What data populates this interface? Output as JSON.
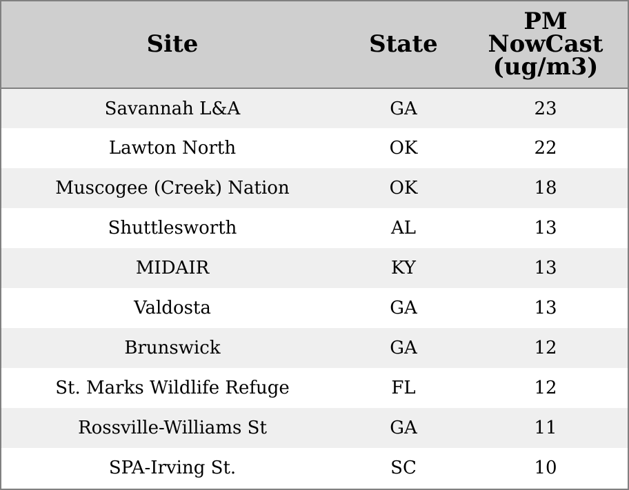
{
  "chart_data": {
    "type": "table",
    "columns": [
      "Site",
      "State",
      "PM NowCast (ug/m3)"
    ],
    "rows": [
      {
        "site": "Savannah L&A",
        "state": "GA",
        "pm": "23"
      },
      {
        "site": "Lawton North",
        "state": "OK",
        "pm": "22"
      },
      {
        "site": "Muscogee (Creek) Nation",
        "state": "OK",
        "pm": "18"
      },
      {
        "site": "Shuttlesworth",
        "state": "AL",
        "pm": "13"
      },
      {
        "site": "MIDAIR",
        "state": "KY",
        "pm": "13"
      },
      {
        "site": "Valdosta",
        "state": "GA",
        "pm": "13"
      },
      {
        "site": "Brunswick",
        "state": "GA",
        "pm": "12"
      },
      {
        "site": "St. Marks Wildlife Refuge",
        "state": "FL",
        "pm": "12"
      },
      {
        "site": "Rossville-Williams St",
        "state": "GA",
        "pm": "11"
      },
      {
        "site": "SPA-Irving St.",
        "state": "SC",
        "pm": "10"
      }
    ]
  },
  "header": {
    "site": "Site",
    "state": "State",
    "pm_line1": "PM",
    "pm_line2": "NowCast",
    "pm_line3": "(ug/m3)"
  },
  "colors": {
    "header_bg": "#cfcfcf",
    "stripe_bg": "#efefef",
    "border": "#808080"
  }
}
